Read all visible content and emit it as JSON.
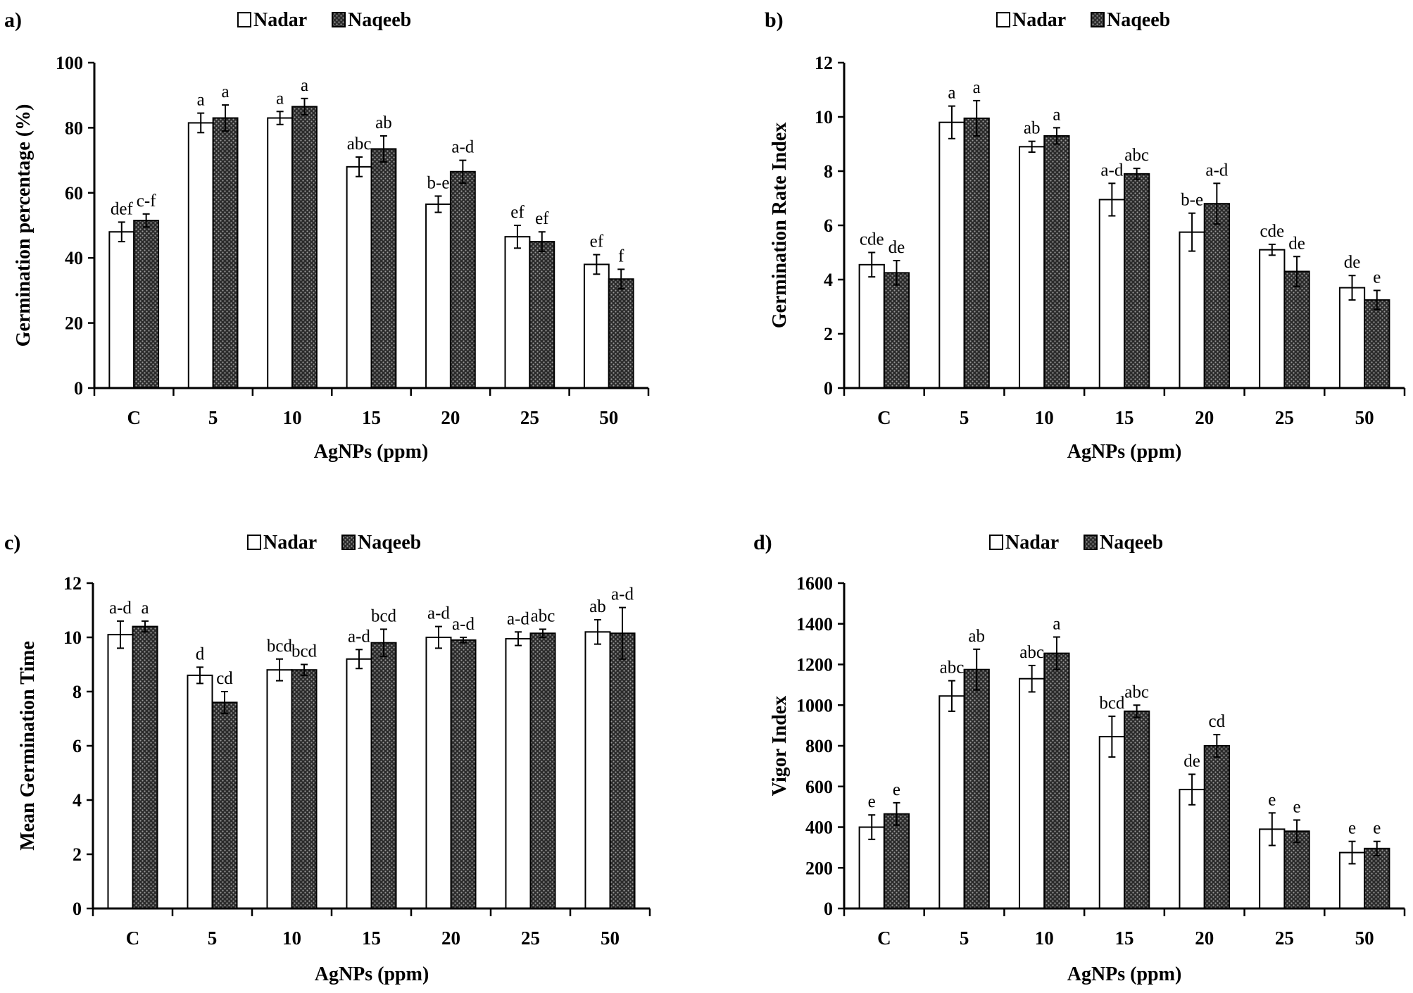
{
  "legend": {
    "series_a": "Nadar",
    "series_b": "Naqeeb"
  },
  "colors": {
    "axis": "#000000",
    "nadar_fill": "#ffffff",
    "naqeeb_fill": "#2b2b2b",
    "naqeeb_dot": "#9a9a9a"
  },
  "chart_data": [
    {
      "panel_label": "a)",
      "type": "bar",
      "title": "",
      "xlabel": "AgNPs (ppm)",
      "ylabel": "Germination percentage (%)",
      "ylim": [
        0,
        100
      ],
      "yticks": [
        "0",
        "20",
        "40",
        "60",
        "80",
        "100"
      ],
      "categories": [
        "C",
        "5",
        "10",
        "15",
        "20",
        "25",
        "50"
      ],
      "series": [
        {
          "name": "Nadar",
          "values": [
            48,
            81.5,
            83,
            68,
            56.5,
            46.5,
            38
          ],
          "errors": [
            3,
            3,
            2,
            3,
            2.5,
            3.5,
            3
          ],
          "labels": [
            "def",
            "a",
            "a",
            "abc",
            "b-e",
            "ef",
            "ef"
          ]
        },
        {
          "name": "Naqeeb",
          "values": [
            51.5,
            83,
            86.5,
            73.5,
            66.5,
            45,
            33.5
          ],
          "errors": [
            2,
            4,
            2.5,
            4,
            3.5,
            3,
            3
          ],
          "labels": [
            "c-f",
            "a",
            "a",
            "ab",
            "a-d",
            "ef",
            "f"
          ]
        }
      ]
    },
    {
      "panel_label": "b)",
      "type": "bar",
      "title": "",
      "xlabel": "AgNPs (ppm)",
      "ylabel": "Germination Rate Index",
      "ylim": [
        0,
        12
      ],
      "yticks": [
        "0",
        "2",
        "4",
        "6",
        "8",
        "10",
        "12"
      ],
      "categories": [
        "C",
        "5",
        "10",
        "15",
        "20",
        "25",
        "50"
      ],
      "series": [
        {
          "name": "Nadar",
          "values": [
            4.55,
            9.8,
            8.9,
            6.95,
            5.75,
            5.1,
            3.7
          ],
          "errors": [
            0.45,
            0.6,
            0.2,
            0.6,
            0.7,
            0.2,
            0.45
          ],
          "labels": [
            "cde",
            "a",
            "ab",
            "a-d",
            "b-e",
            "cde",
            "de"
          ]
        },
        {
          "name": "Naqeeb",
          "values": [
            4.25,
            9.95,
            9.3,
            7.9,
            6.8,
            4.3,
            3.25
          ],
          "errors": [
            0.45,
            0.65,
            0.3,
            0.2,
            0.75,
            0.55,
            0.35
          ],
          "labels": [
            "de",
            "a",
            "a",
            "abc",
            "a-d",
            "de",
            "e"
          ]
        }
      ]
    },
    {
      "panel_label": "c)",
      "type": "bar",
      "title": "",
      "xlabel": "AgNPs (ppm)",
      "ylabel": "Mean Germination Time",
      "ylim": [
        0,
        12
      ],
      "yticks": [
        "0",
        "2",
        "4",
        "6",
        "8",
        "10",
        "12"
      ],
      "categories": [
        "C",
        "5",
        "10",
        "15",
        "20",
        "25",
        "50"
      ],
      "series": [
        {
          "name": "Nadar",
          "values": [
            10.1,
            8.6,
            8.8,
            9.2,
            10,
            9.95,
            10.2
          ],
          "errors": [
            0.5,
            0.3,
            0.4,
            0.35,
            0.4,
            0.25,
            0.45
          ],
          "labels": [
            "a-d",
            "d",
            "bcd",
            "a-d",
            "a-d",
            "a-d",
            "ab"
          ]
        },
        {
          "name": "Naqeeb",
          "values": [
            10.4,
            7.6,
            8.8,
            9.8,
            9.9,
            10.15,
            10.15
          ],
          "errors": [
            0.2,
            0.4,
            0.2,
            0.5,
            0.1,
            0.15,
            0.95
          ],
          "labels": [
            "a",
            "cd",
            "bcd",
            "bcd",
            "a-d",
            "abc",
            "a-d"
          ]
        }
      ]
    },
    {
      "panel_label": "d)",
      "type": "bar",
      "title": "",
      "xlabel": "AgNPs (ppm)",
      "ylabel": "Vigor Index",
      "ylim": [
        0,
        1600
      ],
      "yticks": [
        "0",
        "200",
        "400",
        "600",
        "800",
        "1000",
        "1200",
        "1400",
        "1600"
      ],
      "categories": [
        "C",
        "5",
        "10",
        "15",
        "20",
        "25",
        "50"
      ],
      "series": [
        {
          "name": "Nadar",
          "values": [
            400,
            1045,
            1130,
            845,
            585,
            390,
            275
          ],
          "errors": [
            60,
            75,
            65,
            100,
            75,
            80,
            55
          ],
          "labels": [
            "e",
            "abc",
            "abc",
            "bcd",
            "de",
            "e",
            "e"
          ]
        },
        {
          "name": "Naqeeb",
          "values": [
            465,
            1175,
            1255,
            970,
            800,
            380,
            295
          ],
          "errors": [
            55,
            100,
            80,
            30,
            55,
            55,
            35
          ],
          "labels": [
            "e",
            "ab",
            "a",
            "abc",
            "cd",
            "e",
            "e"
          ]
        }
      ]
    }
  ]
}
